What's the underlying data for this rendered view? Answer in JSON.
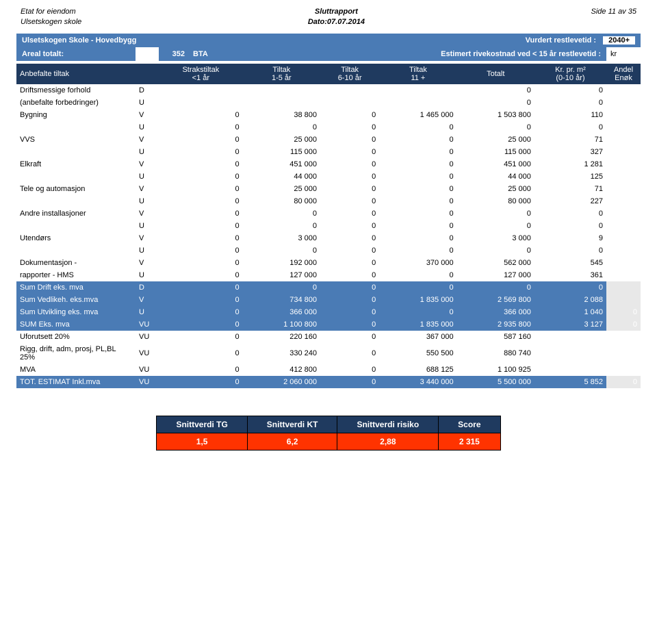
{
  "header": {
    "left1": "Etat for eiendom",
    "left2": "Ulsetskogen skole",
    "center1": "Sluttrapport",
    "center2": "Dato:07.07.2014",
    "right": "Side 11 av 35"
  },
  "title": {
    "name": "Ulsetskogen Skole - Hovedbygg",
    "restlabel": "Vurdert restlevetid :",
    "restvalue": "2040+"
  },
  "areal": {
    "label": "Areal totalt:",
    "value": "352",
    "unit": "BTA",
    "estlabel": "Estimert rivekostnad ved < 15 år restlevetid :",
    "kr": "kr"
  },
  "thead": {
    "c0": "Anbefalte tiltak",
    "c1": "",
    "c2": "Strakstiltak\n<1 år",
    "c3": "Tiltak\n1-5 år",
    "c4": "Tiltak\n6-10 år",
    "c5": "Tiltak\n11 +",
    "c6": "Totalt",
    "c7": "Kr. pr. m²\n(0-10 år)",
    "c8": "Andel\nEnøk"
  },
  "rows": [
    {
      "lbl": "Driftsmessige forhold",
      "c": "D",
      "v": [
        "",
        "",
        "",
        "",
        "0",
        "0"
      ],
      "e": ""
    },
    {
      "lbl": "(anbefalte forbedringer)",
      "c": "U",
      "v": [
        "",
        "",
        "",
        "",
        "0",
        "0"
      ],
      "e": ""
    },
    {
      "lbl": "Bygning",
      "c": "V",
      "v": [
        "0",
        "38 800",
        "0",
        "1 465 000",
        "1 503 800",
        "110"
      ],
      "e": ""
    },
    {
      "lbl": "",
      "c": "U",
      "v": [
        "0",
        "0",
        "0",
        "0",
        "0",
        "0"
      ],
      "e": ""
    },
    {
      "lbl": "VVS",
      "c": "V",
      "v": [
        "0",
        "25 000",
        "0",
        "0",
        "25 000",
        "71"
      ],
      "e": ""
    },
    {
      "lbl": "",
      "c": "U",
      "v": [
        "0",
        "115 000",
        "0",
        "0",
        "115 000",
        "327"
      ],
      "e": ""
    },
    {
      "lbl": "Elkraft",
      "c": "V",
      "v": [
        "0",
        "451 000",
        "0",
        "0",
        "451 000",
        "1 281"
      ],
      "e": ""
    },
    {
      "lbl": "",
      "c": "U",
      "v": [
        "0",
        "44 000",
        "0",
        "0",
        "44 000",
        "125"
      ],
      "e": ""
    },
    {
      "lbl": "Tele og automasjon",
      "c": "V",
      "v": [
        "0",
        "25 000",
        "0",
        "0",
        "25 000",
        "71"
      ],
      "e": ""
    },
    {
      "lbl": "",
      "c": "U",
      "v": [
        "0",
        "80 000",
        "0",
        "0",
        "80 000",
        "227"
      ],
      "e": ""
    },
    {
      "lbl": "Andre installasjoner",
      "c": "V",
      "v": [
        "0",
        "0",
        "0",
        "0",
        "0",
        "0"
      ],
      "e": ""
    },
    {
      "lbl": "",
      "c": "U",
      "v": [
        "0",
        "0",
        "0",
        "0",
        "0",
        "0"
      ],
      "e": ""
    },
    {
      "lbl": "Utendørs",
      "c": "V",
      "v": [
        "0",
        "3 000",
        "0",
        "0",
        "3 000",
        "9"
      ],
      "e": ""
    },
    {
      "lbl": "",
      "c": "U",
      "v": [
        "0",
        "0",
        "0",
        "0",
        "0",
        "0"
      ],
      "e": ""
    },
    {
      "lbl": "Dokumentasjon -",
      "c": "V",
      "v": [
        "0",
        "192 000",
        "0",
        "370 000",
        "562 000",
        "545"
      ],
      "e": ""
    },
    {
      "lbl": "rapporter - HMS",
      "c": "U",
      "v": [
        "0",
        "127 000",
        "0",
        "0",
        "127 000",
        "361"
      ],
      "e": ""
    },
    {
      "lbl": "Sum Drift eks. mva",
      "c": "D",
      "v": [
        "0",
        "0",
        "0",
        "0",
        "0",
        "0"
      ],
      "e": "",
      "hl": true
    },
    {
      "lbl": "Sum Vedlikeh. eks.mva",
      "c": "V",
      "v": [
        "0",
        "734 800",
        "0",
        "1 835 000",
        "2 569 800",
        "2 088"
      ],
      "e": "",
      "hl": true
    },
    {
      "lbl": "Sum Utvikling eks. mva",
      "c": "U",
      "v": [
        "0",
        "366 000",
        "0",
        "0",
        "366 000",
        "1 040"
      ],
      "e": "0",
      "hl": true
    },
    {
      "lbl": "SUM Eks. mva",
      "c": "VU",
      "v": [
        "0",
        "1 100 800",
        "0",
        "1 835 000",
        "2 935 800",
        "3 127"
      ],
      "e": "0",
      "hl": true
    },
    {
      "lbl": "Uforutsett 20%",
      "c": "VU",
      "v": [
        "0",
        "220 160",
        "0",
        "367 000",
        "587 160",
        ""
      ],
      "e": ""
    },
    {
      "lbl": "Rigg, drift, adm, prosj, PL,BL 25%",
      "c": "VU",
      "v": [
        "0",
        "330 240",
        "0",
        "550 500",
        "880 740",
        ""
      ],
      "e": ""
    },
    {
      "lbl": "MVA",
      "c": "VU",
      "v": [
        "0",
        "412 800",
        "0",
        "688 125",
        "1 100 925",
        ""
      ],
      "e": ""
    },
    {
      "lbl": "TOT. ESTIMAT Inkl.mva",
      "c": "VU",
      "v": [
        "0",
        "2 060 000",
        "0",
        "3 440 000",
        "5 500 000",
        "5 852"
      ],
      "e": "0",
      "hl": true
    }
  ],
  "summary": {
    "headers": [
      "Snittverdi TG",
      "Snittverdi KT",
      "Snittverdi risiko",
      "Score"
    ],
    "values": [
      "1,5",
      "6,2",
      "2,88",
      "2 315"
    ]
  }
}
